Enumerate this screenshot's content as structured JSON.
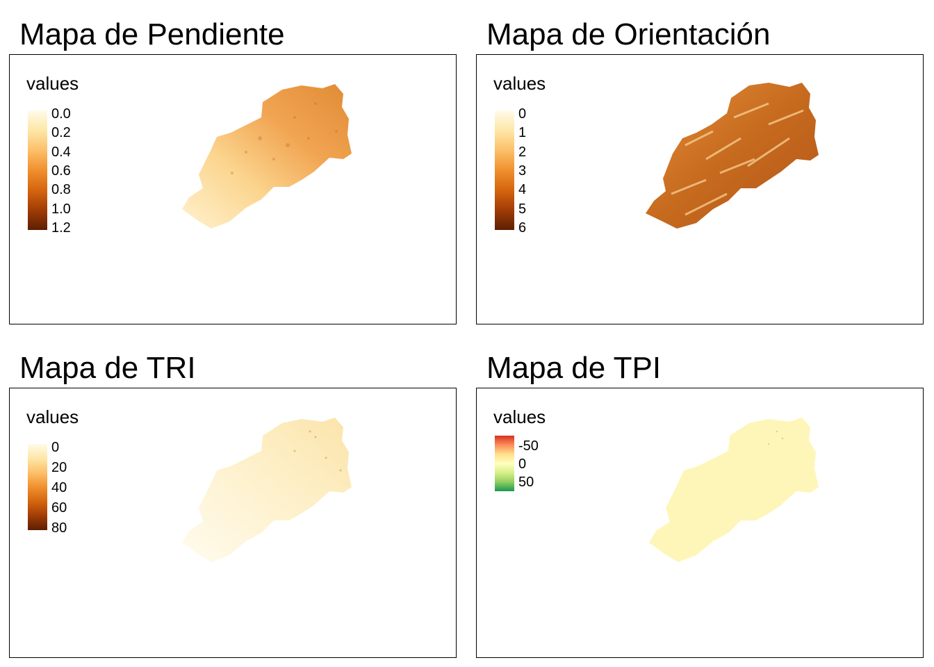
{
  "figure": {
    "panels": [
      {
        "id": "pendiente",
        "title": "Mapa de Pendiente",
        "legend": {
          "title": "values",
          "labels": [
            "0.0",
            "0.2",
            "0.4",
            "0.6",
            "0.8",
            "1.0",
            "1.2"
          ],
          "colors": [
            "#fffbea",
            "#fde7a7",
            "#fcc069",
            "#f0902e",
            "#d5650f",
            "#a13c05",
            "#5c1f03"
          ]
        }
      },
      {
        "id": "orientacion",
        "title": "Mapa de Orientación",
        "legend": {
          "title": "values",
          "labels": [
            "0",
            "1",
            "2",
            "3",
            "4",
            "5",
            "6"
          ],
          "colors": [
            "#fffbea",
            "#fde7a7",
            "#fcc069",
            "#f0902e",
            "#d5650f",
            "#a13c05",
            "#5c1f03"
          ]
        }
      },
      {
        "id": "tri",
        "title": "Mapa de TRI",
        "legend": {
          "title": "values",
          "labels": [
            "0",
            "20",
            "40",
            "60",
            "80"
          ],
          "colors": [
            "#fffbea",
            "#fde7a7",
            "#fcc069",
            "#f0902e",
            "#d5650f",
            "#a13c05",
            "#5c1f03"
          ]
        }
      },
      {
        "id": "tpi",
        "title": "Mapa de TPI",
        "legend": {
          "title": "values",
          "labels": [
            "-50",
            "0",
            "50"
          ],
          "colors": [
            "#d7301f",
            "#fc8d59",
            "#fee08b",
            "#ffffbf",
            "#d9ef8b",
            "#91cf60",
            "#1a9850"
          ]
        }
      }
    ]
  }
}
